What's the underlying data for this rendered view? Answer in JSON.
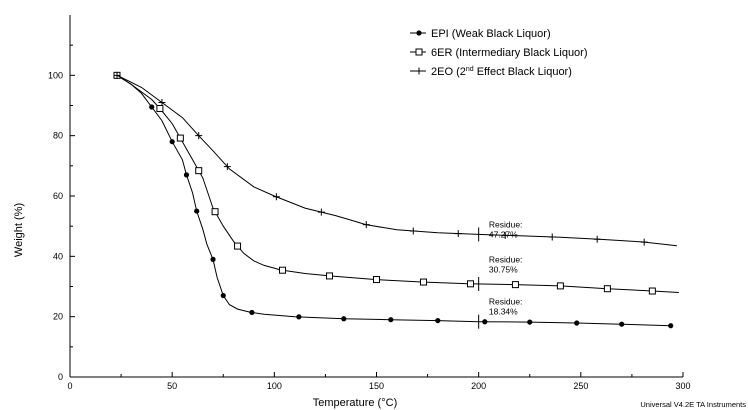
{
  "chart_data": {
    "type": "line",
    "title": "",
    "xlabel": "Temperature (°C)",
    "ylabel": "Weight (%)",
    "xlim": [
      0,
      300
    ],
    "ylim": [
      0,
      120
    ],
    "xticks": [
      0,
      50,
      100,
      150,
      200,
      250,
      300
    ],
    "yticks": [
      0,
      20,
      40,
      60,
      80,
      100
    ],
    "grid": false,
    "legend_position": "top-right",
    "footer": "Universal V4.2E TA Instruments",
    "series": [
      {
        "name": "EPI (Weak Black Liquor)",
        "marker": "filled-circle",
        "x": [
          23,
          30,
          35,
          40,
          45,
          50,
          55,
          57,
          60,
          62,
          65,
          67,
          70,
          72,
          75,
          78,
          82,
          88,
          95,
          110,
          134,
          157,
          180,
          200,
          225,
          248,
          270,
          294
        ],
        "y": [
          100,
          97,
          94,
          89.5,
          85,
          78,
          72,
          67,
          61,
          55,
          49,
          44,
          39,
          33,
          27,
          24,
          22.5,
          21.5,
          20.8,
          20,
          19.3,
          19,
          18.7,
          18.34,
          18.2,
          17.9,
          17.5,
          17
        ],
        "marker_x": [
          23,
          40,
          50,
          57,
          62,
          70,
          75,
          89,
          112,
          134,
          157,
          180,
          203,
          225,
          248,
          270,
          294
        ]
      },
      {
        "name": "6ER (Intermediary Black Liquor)",
        "marker": "open-square",
        "x": [
          23,
          30,
          40,
          44,
          50,
          55,
          60,
          65,
          70,
          75,
          80,
          85,
          90,
          95,
          103,
          115,
          127,
          150,
          172,
          195,
          220,
          240,
          262,
          285,
          298
        ],
        "y": [
          100,
          97,
          92,
          89,
          84,
          78,
          72,
          66,
          56,
          50,
          45,
          41,
          38.5,
          37,
          35.5,
          34.3,
          33.5,
          32.3,
          31.5,
          30.9,
          30.6,
          30.2,
          29.3,
          28.5,
          28
        ],
        "marker_x": [
          23,
          44,
          54,
          63,
          71,
          82,
          104,
          127,
          150,
          173,
          196,
          218,
          240,
          263,
          285
        ]
      },
      {
        "name": "2EO (2nd Effect Black Liquor)",
        "marker": "plus",
        "x": [
          23,
          35,
          45,
          55,
          63,
          70,
          78,
          90,
          100,
          115,
          130,
          135,
          145,
          160,
          180,
          200,
          220,
          240,
          260,
          280,
          297
        ],
        "y": [
          100,
          96,
          91,
          86,
          80,
          75,
          69,
          63,
          60,
          56,
          53.5,
          52.5,
          50.5,
          48.8,
          47.8,
          47.27,
          46.8,
          46.3,
          45.6,
          44.8,
          43.5
        ],
        "marker_x": [
          23,
          45,
          63,
          77,
          101,
          123,
          145,
          168,
          190,
          213,
          236,
          258,
          281
        ]
      }
    ],
    "annotations": [
      {
        "lines": [
          "Residue:",
          "47.27%"
        ],
        "x": 205,
        "y": 49.5
      },
      {
        "lines": [
          "Residue:",
          "30.75%"
        ],
        "x": 205,
        "y": 38
      },
      {
        "lines": [
          "Residue:",
          "18.34%"
        ],
        "x": 205,
        "y": 24
      }
    ],
    "residue_tick_x": 200
  }
}
